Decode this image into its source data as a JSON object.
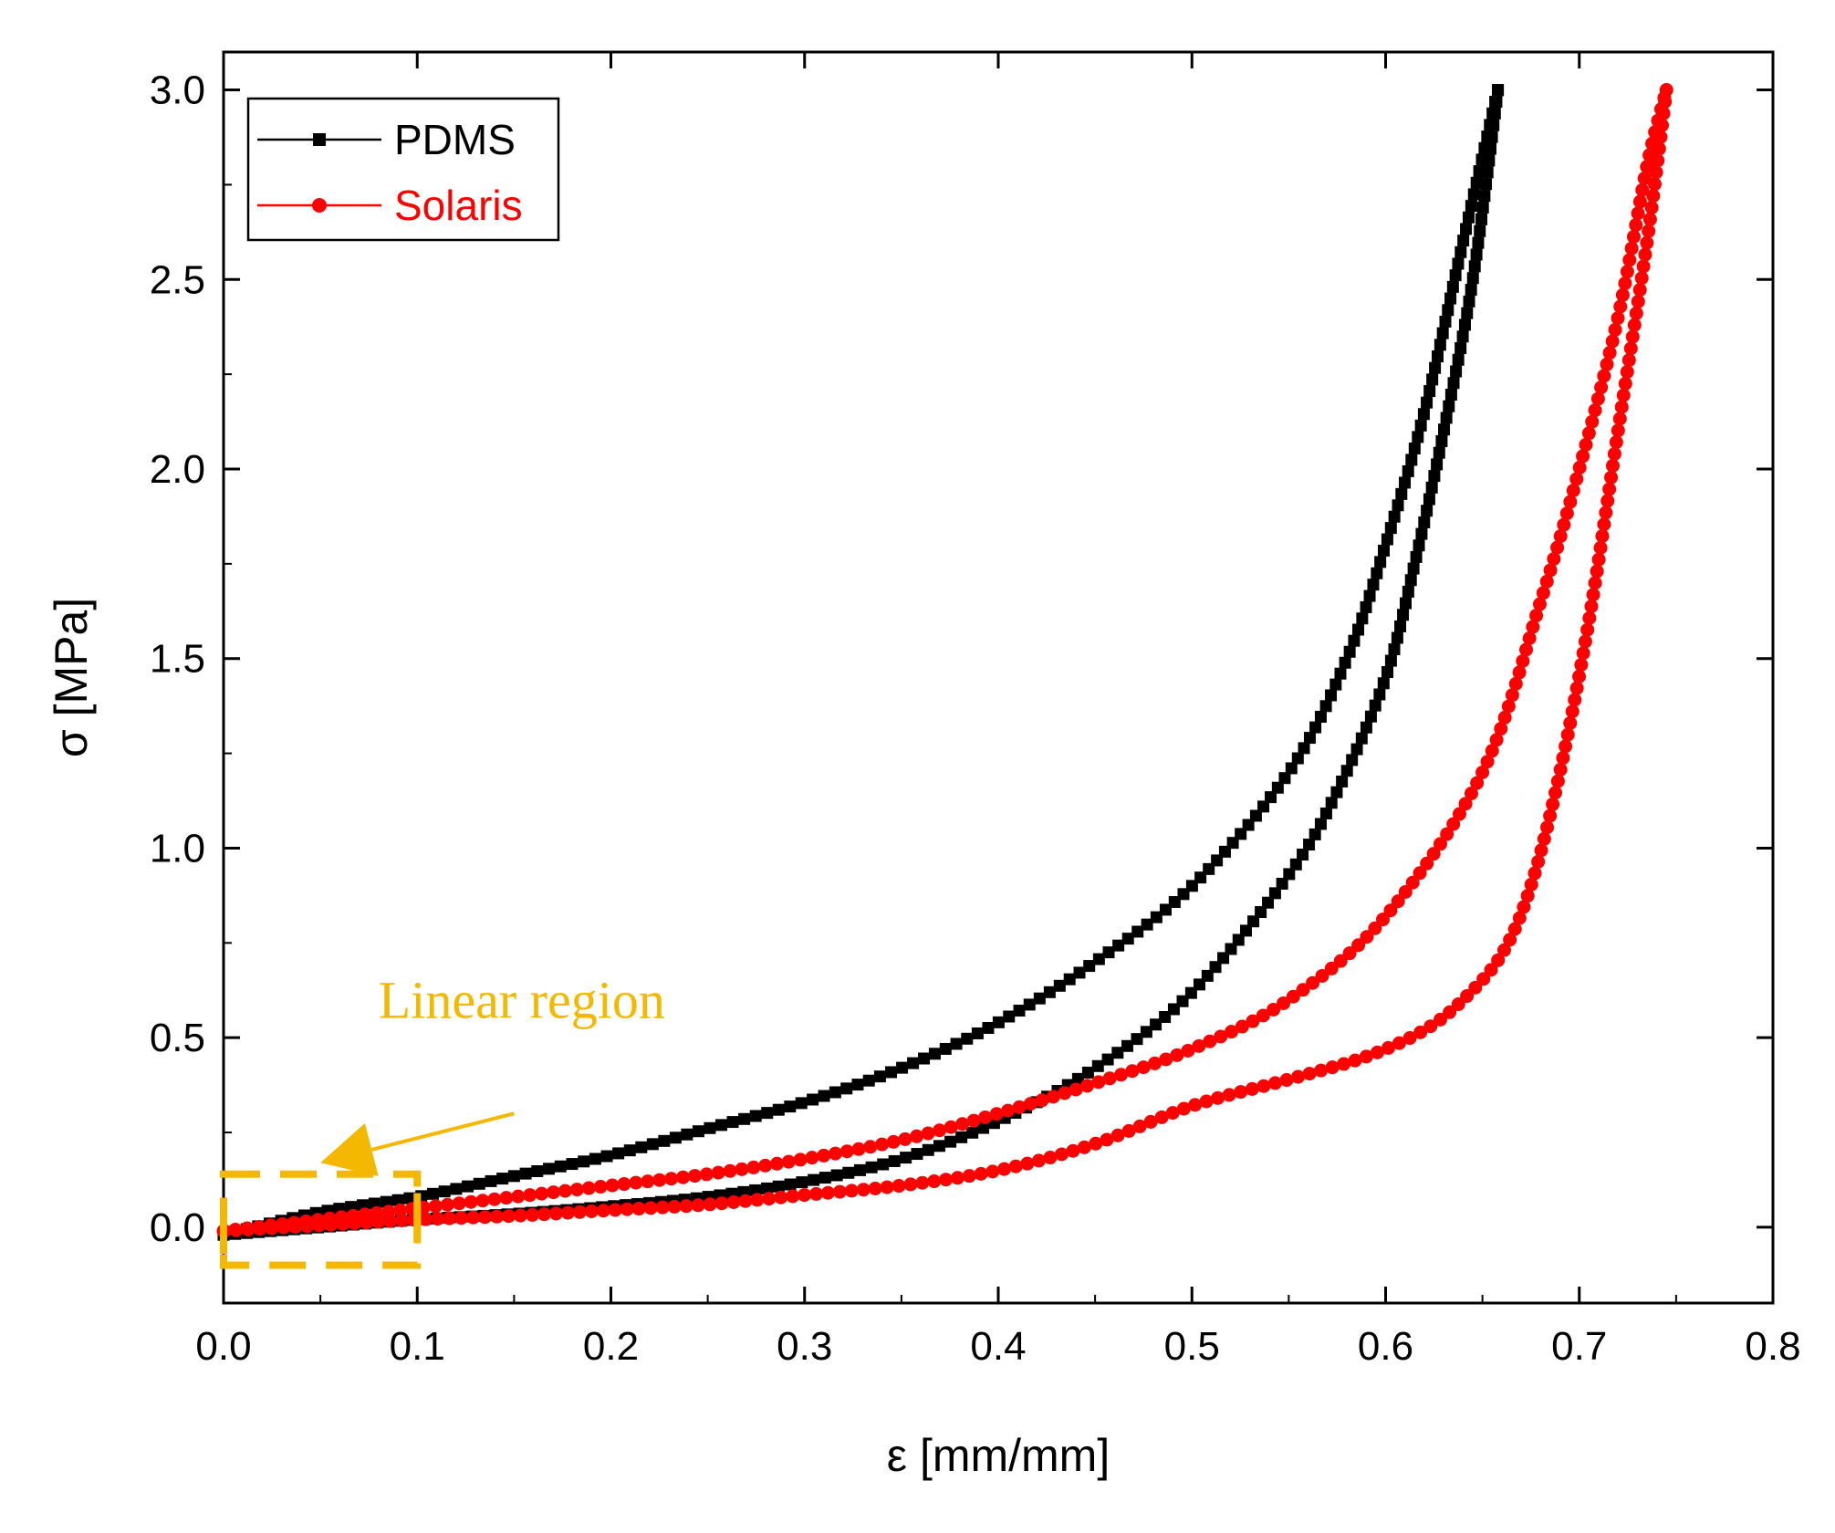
{
  "chart_data": {
    "type": "line",
    "title": "",
    "xlabel": "ε [mm/mm]",
    "ylabel": "σ [MPa]",
    "xlim": [
      0.0,
      0.8
    ],
    "ylim": [
      -0.2,
      3.1
    ],
    "x_ticks": [
      "0.0",
      "0.1",
      "0.2",
      "0.3",
      "0.4",
      "0.5",
      "0.6",
      "0.7",
      "0.8"
    ],
    "y_ticks": [
      "0.0",
      "0.5",
      "1.0",
      "1.5",
      "2.0",
      "2.5",
      "3.0"
    ],
    "grid": false,
    "legend_position": "top-left",
    "series": [
      {
        "name": "PDMS",
        "color": "#000000",
        "marker": "square",
        "loading": [
          [
            0.0,
            -0.02
          ],
          [
            0.05,
            0.04
          ],
          [
            0.1,
            0.08
          ],
          [
            0.15,
            0.135
          ],
          [
            0.2,
            0.19
          ],
          [
            0.25,
            0.26
          ],
          [
            0.3,
            0.33
          ],
          [
            0.35,
            0.42
          ],
          [
            0.4,
            0.54
          ],
          [
            0.45,
            0.7
          ],
          [
            0.5,
            0.9
          ],
          [
            0.55,
            1.2
          ],
          [
            0.58,
            1.5
          ],
          [
            0.6,
            1.8
          ],
          [
            0.62,
            2.15
          ],
          [
            0.64,
            2.6
          ],
          [
            0.658,
            3.0
          ]
        ],
        "unloading": [
          [
            0.658,
            3.0
          ],
          [
            0.645,
            2.5
          ],
          [
            0.63,
            2.1
          ],
          [
            0.615,
            1.75
          ],
          [
            0.6,
            1.45
          ],
          [
            0.575,
            1.15
          ],
          [
            0.55,
            0.93
          ],
          [
            0.5,
            0.62
          ],
          [
            0.45,
            0.42
          ],
          [
            0.4,
            0.28
          ],
          [
            0.35,
            0.18
          ],
          [
            0.3,
            0.12
          ],
          [
            0.25,
            0.08
          ],
          [
            0.2,
            0.055
          ],
          [
            0.15,
            0.035
          ],
          [
            0.1,
            0.02
          ],
          [
            0.05,
            0.0
          ],
          [
            0.0,
            -0.02
          ]
        ]
      },
      {
        "name": "Solaris",
        "color": "#ff0000",
        "marker": "circle",
        "loading": [
          [
            0.0,
            -0.01
          ],
          [
            0.05,
            0.02
          ],
          [
            0.1,
            0.05
          ],
          [
            0.15,
            0.08
          ],
          [
            0.2,
            0.11
          ],
          [
            0.25,
            0.14
          ],
          [
            0.3,
            0.18
          ],
          [
            0.35,
            0.23
          ],
          [
            0.4,
            0.3
          ],
          [
            0.45,
            0.38
          ],
          [
            0.5,
            0.47
          ],
          [
            0.55,
            0.6
          ],
          [
            0.6,
            0.82
          ],
          [
            0.65,
            1.2
          ],
          [
            0.68,
            1.65
          ],
          [
            0.7,
            2.0
          ],
          [
            0.72,
            2.4
          ],
          [
            0.735,
            2.8
          ],
          [
            0.745,
            3.0
          ]
        ],
        "unloading": [
          [
            0.745,
            3.0
          ],
          [
            0.735,
            2.6
          ],
          [
            0.72,
            2.1
          ],
          [
            0.705,
            1.6
          ],
          [
            0.69,
            1.2
          ],
          [
            0.675,
            0.9
          ],
          [
            0.66,
            0.72
          ],
          [
            0.64,
            0.6
          ],
          [
            0.62,
            0.52
          ],
          [
            0.59,
            0.45
          ],
          [
            0.55,
            0.39
          ],
          [
            0.5,
            0.32
          ],
          [
            0.45,
            0.22
          ],
          [
            0.4,
            0.15
          ],
          [
            0.35,
            0.11
          ],
          [
            0.3,
            0.085
          ],
          [
            0.25,
            0.06
          ],
          [
            0.2,
            0.045
          ],
          [
            0.15,
            0.03
          ],
          [
            0.1,
            0.02
          ],
          [
            0.05,
            0.005
          ],
          [
            0.0,
            -0.01
          ]
        ]
      }
    ],
    "annotation": {
      "text": "Linear region",
      "color": "#f5b800",
      "box_x_range": [
        0.0,
        0.1
      ],
      "box_y_range": [
        -0.1,
        0.14
      ],
      "arrow_from": [
        0.15,
        0.3
      ],
      "arrow_to": [
        0.05,
        0.17
      ],
      "label_at": [
        0.08,
        0.6
      ]
    }
  }
}
